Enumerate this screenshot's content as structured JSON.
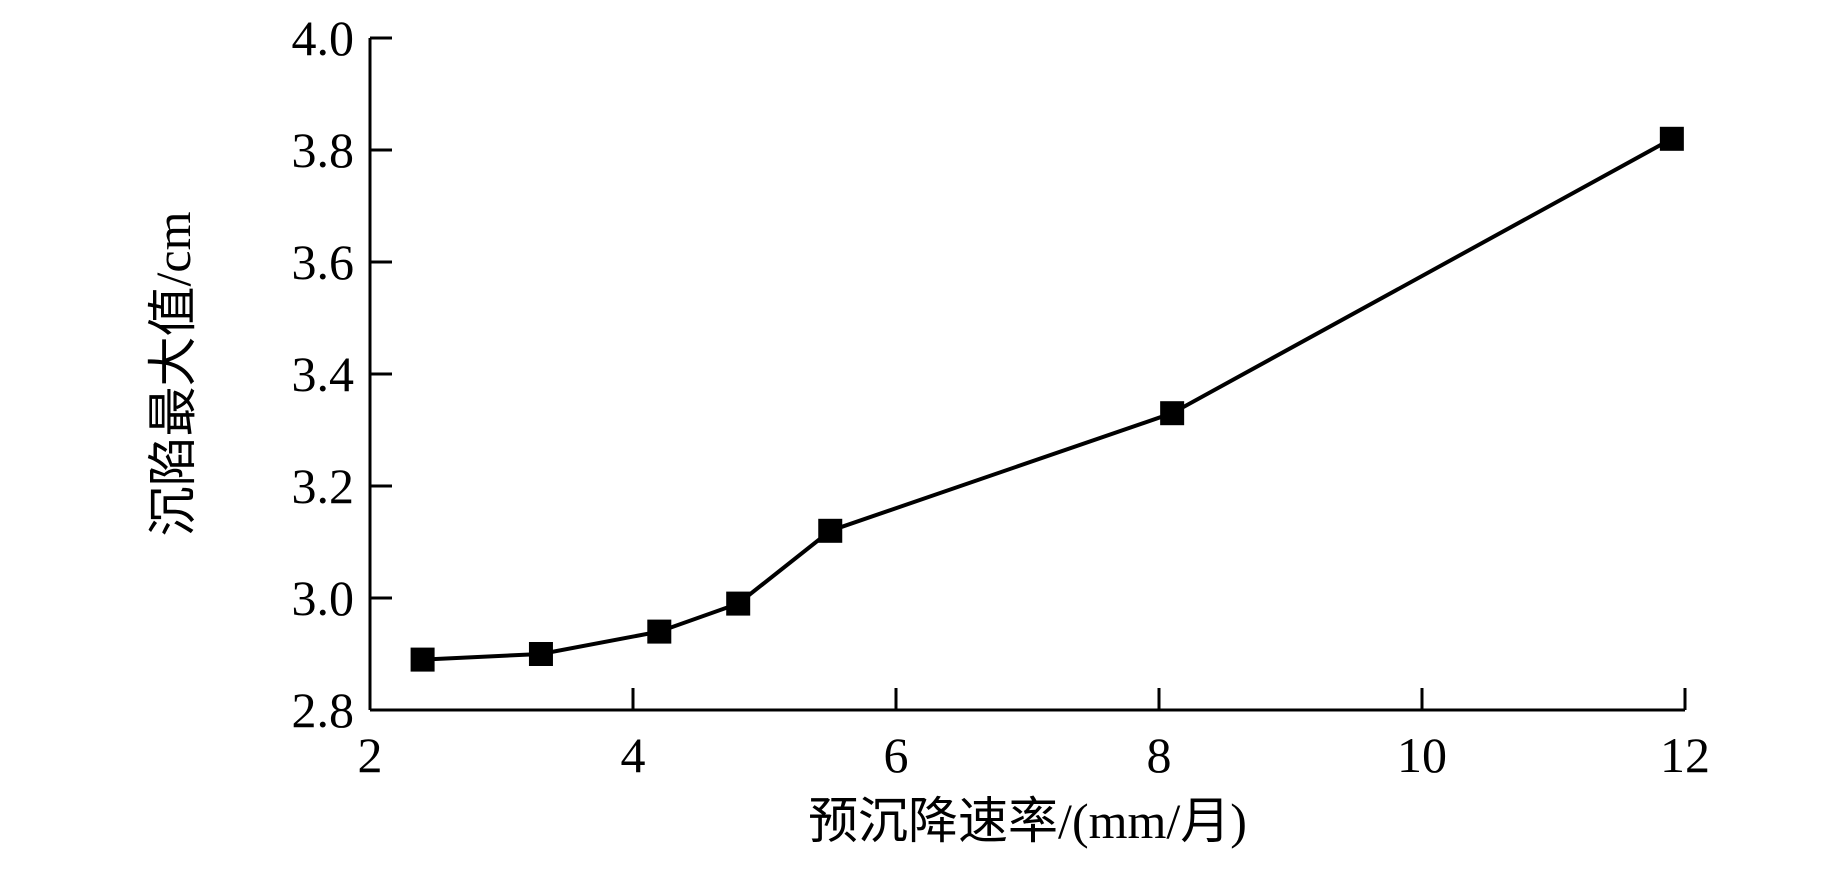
{
  "chart_data": {
    "type": "line",
    "title": "",
    "xlabel": "预沉降速率/(mm/月)",
    "ylabel": "沉陷最大值/cm",
    "xlim": [
      2,
      12
    ],
    "ylim": [
      2.8,
      4.0
    ],
    "xticks": [
      2,
      4,
      6,
      8,
      10,
      12
    ],
    "yticks": [
      2.8,
      3.0,
      3.2,
      3.4,
      3.6,
      3.8,
      4.0
    ],
    "xtick_labels": [
      "2",
      "4",
      "6",
      "8",
      "10",
      "12"
    ],
    "ytick_labels": [
      "2.8",
      "3.0",
      "3.2",
      "3.4",
      "3.6",
      "3.8",
      "4.0"
    ],
    "grid": false,
    "series": [
      {
        "marker": "square",
        "color": "#000000",
        "x": [
          2.4,
          3.3,
          4.2,
          4.8,
          5.5,
          8.1,
          11.9
        ],
        "y": [
          2.89,
          2.9,
          2.94,
          2.99,
          3.12,
          3.33,
          3.82
        ]
      }
    ]
  }
}
